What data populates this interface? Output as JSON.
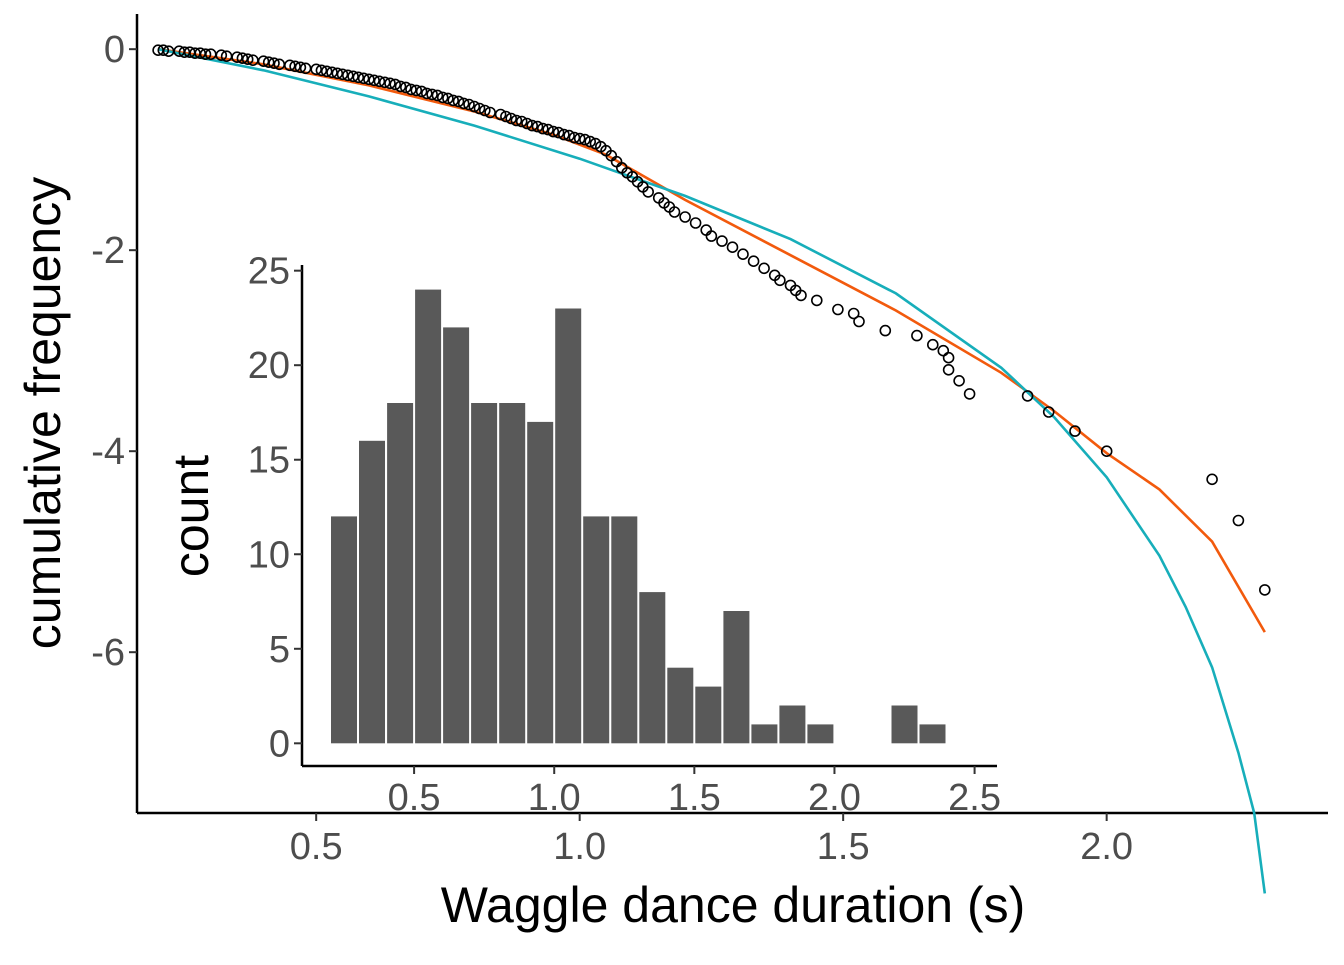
{
  "chart_data": [
    {
      "type": "scatter",
      "xlabel": "Waggle dance duration (s)",
      "ylabel": "cumulative frequency",
      "xlim": [
        0.16,
        2.42
      ],
      "ylim": [
        -7.6,
        0.35
      ],
      "x_ticks": [
        0.5,
        1.0,
        1.5,
        2.0
      ],
      "x_tick_labels": [
        "0.5",
        "1.0",
        "1.5",
        "2.0"
      ],
      "y_ticks": [
        0,
        -2,
        -4,
        -6
      ],
      "y_tick_labels": [
        "0",
        "-2",
        "-4",
        "-6"
      ],
      "grid": false,
      "colors": {
        "points": "#000000",
        "orange_curve": "#f25a0d",
        "teal_curve": "#17aeba"
      },
      "points": [
        [
          0.2,
          -0.01
        ],
        [
          0.21,
          -0.01
        ],
        [
          0.22,
          -0.02
        ],
        [
          0.24,
          -0.02
        ],
        [
          0.25,
          -0.03
        ],
        [
          0.26,
          -0.03
        ],
        [
          0.27,
          -0.04
        ],
        [
          0.28,
          -0.04
        ],
        [
          0.29,
          -0.05
        ],
        [
          0.3,
          -0.05
        ],
        [
          0.32,
          -0.06
        ],
        [
          0.33,
          -0.07
        ],
        [
          0.35,
          -0.08
        ],
        [
          0.36,
          -0.09
        ],
        [
          0.37,
          -0.1
        ],
        [
          0.38,
          -0.11
        ],
        [
          0.4,
          -0.12
        ],
        [
          0.41,
          -0.13
        ],
        [
          0.42,
          -0.14
        ],
        [
          0.43,
          -0.15
        ],
        [
          0.45,
          -0.16
        ],
        [
          0.46,
          -0.17
        ],
        [
          0.47,
          -0.18
        ],
        [
          0.48,
          -0.19
        ],
        [
          0.5,
          -0.2
        ],
        [
          0.51,
          -0.21
        ],
        [
          0.52,
          -0.22
        ],
        [
          0.53,
          -0.23
        ],
        [
          0.54,
          -0.24
        ],
        [
          0.55,
          -0.25
        ],
        [
          0.56,
          -0.26
        ],
        [
          0.57,
          -0.27
        ],
        [
          0.58,
          -0.28
        ],
        [
          0.59,
          -0.29
        ],
        [
          0.6,
          -0.3
        ],
        [
          0.61,
          -0.31
        ],
        [
          0.62,
          -0.32
        ],
        [
          0.63,
          -0.33
        ],
        [
          0.64,
          -0.34
        ],
        [
          0.65,
          -0.35
        ],
        [
          0.66,
          -0.37
        ],
        [
          0.67,
          -0.38
        ],
        [
          0.68,
          -0.4
        ],
        [
          0.69,
          -0.41
        ],
        [
          0.7,
          -0.42
        ],
        [
          0.71,
          -0.44
        ],
        [
          0.72,
          -0.45
        ],
        [
          0.73,
          -0.46
        ],
        [
          0.74,
          -0.48
        ],
        [
          0.75,
          -0.49
        ],
        [
          0.76,
          -0.51
        ],
        [
          0.77,
          -0.52
        ],
        [
          0.78,
          -0.54
        ],
        [
          0.79,
          -0.55
        ],
        [
          0.8,
          -0.57
        ],
        [
          0.81,
          -0.59
        ],
        [
          0.82,
          -0.61
        ],
        [
          0.83,
          -0.63
        ],
        [
          0.85,
          -0.65
        ],
        [
          0.86,
          -0.67
        ],
        [
          0.87,
          -0.69
        ],
        [
          0.88,
          -0.71
        ],
        [
          0.89,
          -0.72
        ],
        [
          0.9,
          -0.74
        ],
        [
          0.91,
          -0.76
        ],
        [
          0.92,
          -0.77
        ],
        [
          0.93,
          -0.79
        ],
        [
          0.94,
          -0.8
        ],
        [
          0.95,
          -0.82
        ],
        [
          0.96,
          -0.83
        ],
        [
          0.97,
          -0.85
        ],
        [
          0.98,
          -0.86
        ],
        [
          0.99,
          -0.88
        ],
        [
          1.0,
          -0.89
        ],
        [
          1.01,
          -0.9
        ],
        [
          1.02,
          -0.92
        ],
        [
          1.03,
          -0.94
        ],
        [
          1.04,
          -0.97
        ],
        [
          1.05,
          -1.01
        ],
        [
          1.06,
          -1.06
        ],
        [
          1.07,
          -1.12
        ],
        [
          1.08,
          -1.18
        ],
        [
          1.09,
          -1.23
        ],
        [
          1.1,
          -1.27
        ],
        [
          1.11,
          -1.32
        ],
        [
          1.12,
          -1.37
        ],
        [
          1.13,
          -1.42
        ],
        [
          1.15,
          -1.48
        ],
        [
          1.16,
          -1.53
        ],
        [
          1.17,
          -1.57
        ],
        [
          1.18,
          -1.62
        ],
        [
          1.2,
          -1.67
        ],
        [
          1.22,
          -1.73
        ],
        [
          1.24,
          -1.8
        ],
        [
          1.25,
          -1.86
        ],
        [
          1.27,
          -1.91
        ],
        [
          1.29,
          -1.97
        ],
        [
          1.31,
          -2.04
        ],
        [
          1.33,
          -2.11
        ],
        [
          1.35,
          -2.18
        ],
        [
          1.37,
          -2.25
        ],
        [
          1.38,
          -2.3
        ],
        [
          1.4,
          -2.35
        ],
        [
          1.41,
          -2.4
        ],
        [
          1.42,
          -2.45
        ],
        [
          1.45,
          -2.5
        ],
        [
          1.49,
          -2.59
        ],
        [
          1.52,
          -2.63
        ],
        [
          1.53,
          -2.71
        ],
        [
          1.58,
          -2.8
        ],
        [
          1.64,
          -2.85
        ],
        [
          1.67,
          -2.94
        ],
        [
          1.69,
          -3.0
        ],
        [
          1.7,
          -3.07
        ],
        [
          1.7,
          -3.19
        ],
        [
          1.72,
          -3.3
        ],
        [
          1.74,
          -3.43
        ],
        [
          1.85,
          -3.45
        ],
        [
          1.89,
          -3.61
        ],
        [
          1.94,
          -3.8
        ],
        [
          2.0,
          -4.0
        ],
        [
          2.2,
          -4.28
        ],
        [
          2.25,
          -4.69
        ],
        [
          2.3,
          -5.38
        ]
      ],
      "series": [
        {
          "curve": "orange",
          "x": [
            0.2,
            0.4,
            0.6,
            0.8,
            0.95,
            1.05,
            1.2,
            1.4,
            1.6,
            1.8,
            1.9,
            2.0,
            2.1,
            2.2,
            2.3
          ],
          "y": [
            0.0,
            -0.15,
            -0.36,
            -0.62,
            -0.85,
            -1.05,
            -1.5,
            -2.05,
            -2.6,
            -3.22,
            -3.6,
            -4.02,
            -4.38,
            -4.9,
            -5.8
          ]
        },
        {
          "curve": "teal",
          "x": [
            0.2,
            0.4,
            0.6,
            0.8,
            1.0,
            1.2,
            1.4,
            1.6,
            1.8,
            1.9,
            2.0,
            2.1,
            2.15,
            2.2,
            2.25,
            2.28,
            2.3
          ],
          "y": [
            0.0,
            -0.21,
            -0.47,
            -0.76,
            -1.09,
            -1.46,
            -1.89,
            -2.43,
            -3.17,
            -3.66,
            -4.26,
            -5.04,
            -5.55,
            -6.15,
            -7.0,
            -7.6,
            -8.4
          ]
        }
      ]
    },
    {
      "type": "bar",
      "ylabel": "count",
      "xlim": [
        0.1,
        2.58
      ],
      "ylim": [
        -1.2,
        25.3
      ],
      "bin_width": 0.1,
      "x_ticks": [
        0.5,
        1.0,
        1.5,
        2.0,
        2.5
      ],
      "x_tick_labels": [
        "0.5",
        "1.0",
        "1.5",
        "2.0",
        "2.5"
      ],
      "y_ticks": [
        0,
        5,
        10,
        15,
        20,
        25
      ],
      "y_tick_labels": [
        "0",
        "5",
        "10",
        "15",
        "20",
        "25"
      ],
      "grid": false,
      "colors": {
        "bar": "#595959"
      },
      "bin_centers": [
        0.25,
        0.35,
        0.45,
        0.55,
        0.65,
        0.75,
        0.85,
        0.95,
        1.05,
        1.15,
        1.25,
        1.35,
        1.45,
        1.55,
        1.65,
        1.75,
        1.85,
        1.95,
        2.05,
        2.15,
        2.25,
        2.35
      ],
      "values": [
        12,
        16,
        18,
        24,
        22,
        18,
        18,
        17,
        23,
        12,
        12,
        8,
        4,
        3,
        7,
        1,
        2,
        1,
        0,
        0,
        2,
        1
      ]
    }
  ]
}
